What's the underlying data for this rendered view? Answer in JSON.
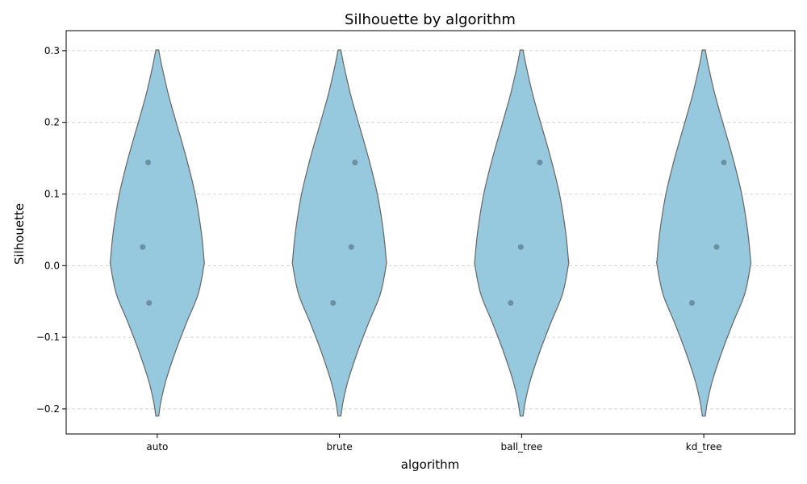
{
  "chart_data": {
    "type": "violin",
    "title": "Silhouette by algorithm",
    "xlabel": "algorithm",
    "ylabel": "Silhouette",
    "categories": [
      "auto",
      "brute",
      "ball_tree",
      "kd_tree"
    ],
    "y_ticks": [
      -0.2,
      -0.1,
      0.0,
      0.1,
      0.2,
      0.3
    ],
    "y_tick_labels": [
      "−0.2",
      "−0.1",
      "0.0",
      "0.1",
      "0.2",
      "0.3"
    ],
    "ylim": [
      -0.235,
      0.328
    ],
    "grid": "y-dashed",
    "violin_range": [
      -0.21,
      0.301
    ],
    "violin_width_profile": [
      {
        "y": -0.21,
        "half_width": 0.02
      },
      {
        "y": -0.19,
        "half_width": 0.05
      },
      {
        "y": -0.16,
        "half_width": 0.12
      },
      {
        "y": -0.12,
        "half_width": 0.25
      },
      {
        "y": -0.08,
        "half_width": 0.4
      },
      {
        "y": -0.04,
        "half_width": 0.56
      },
      {
        "y": 0.0,
        "half_width": 0.64
      },
      {
        "y": 0.01,
        "half_width": 0.64
      },
      {
        "y": 0.05,
        "half_width": 0.6
      },
      {
        "y": 0.1,
        "half_width": 0.52
      },
      {
        "y": 0.15,
        "half_width": 0.4
      },
      {
        "y": 0.2,
        "half_width": 0.26
      },
      {
        "y": 0.24,
        "half_width": 0.15
      },
      {
        "y": 0.28,
        "half_width": 0.06
      },
      {
        "y": 0.301,
        "half_width": 0.02
      }
    ],
    "points": [
      {
        "category": "auto",
        "values": [
          0.144,
          0.026,
          -0.052
        ],
        "jitter": [
          -0.05,
          -0.08,
          -0.045
        ]
      },
      {
        "category": "brute",
        "values": [
          0.144,
          0.026,
          -0.052
        ],
        "jitter": [
          0.085,
          0.065,
          -0.035
        ]
      },
      {
        "category": "ball_tree",
        "values": [
          0.144,
          0.026,
          -0.052
        ],
        "jitter": [
          0.1,
          -0.005,
          -0.06
        ]
      },
      {
        "category": "kd_tree",
        "values": [
          0.144,
          0.026,
          -0.052
        ],
        "jitter": [
          0.11,
          0.07,
          -0.065
        ]
      }
    ],
    "colors": {
      "violin_fill": "#96c8de",
      "violin_stroke": "#666666",
      "point": "#6b8fa3",
      "grid": "#cccccc"
    }
  }
}
